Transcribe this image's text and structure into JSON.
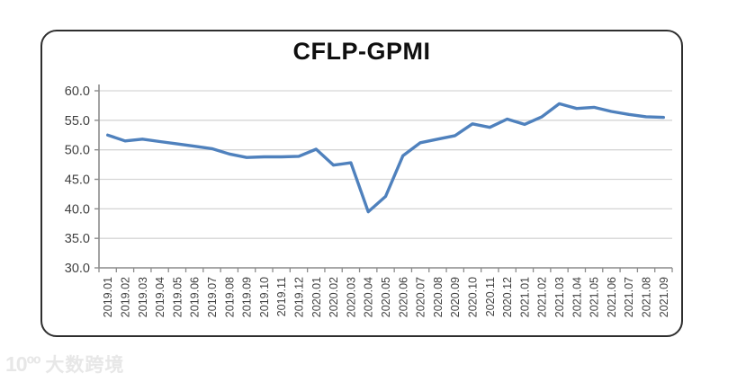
{
  "title": "CFLP-GPMI",
  "watermark": {
    "logo": "10ºº",
    "text": "大数跨境"
  },
  "colors": {
    "line": "#4F81BD",
    "gridline": "#d6d6d6",
    "axis": "#8c8c8c",
    "tick_text": "#3f3f3f",
    "frame_border": "#2e2e2e",
    "title_text": "#0f0f0f",
    "watermark_text": "#e7e7e7"
  },
  "chart_data": {
    "type": "line",
    "title": "CFLP-GPMI",
    "xlabel": "",
    "ylabel": "",
    "ylim": [
      30.0,
      60.0
    ],
    "ytick_step": 5.0,
    "ytick_labels": [
      "60.0",
      "55.0",
      "50.0",
      "45.0",
      "40.0",
      "35.0",
      "30.0"
    ],
    "grid": "horizontal",
    "legend_position": "none",
    "categories": [
      "2019.01",
      "2019.02",
      "2019.03",
      "2019.04",
      "2019.05",
      "2019.06",
      "2019.07",
      "2019.08",
      "2019.09",
      "2019.10",
      "2019.11",
      "2019.12",
      "2020.01",
      "2020.02",
      "2020.03",
      "2020.04",
      "2020.05",
      "2020.06",
      "2020.07",
      "2020.08",
      "2020.09",
      "2020.10",
      "2020.11",
      "2020.12",
      "2021.01",
      "2021.02",
      "2021.03",
      "2021.04",
      "2021.05",
      "2021.06",
      "2021.07",
      "2021.08",
      "2021.09"
    ],
    "series": [
      {
        "name": "CFLP-GPMI",
        "color": "#4F81BD",
        "values": [
          52.5,
          51.5,
          51.8,
          51.4,
          51.0,
          50.6,
          50.2,
          49.3,
          48.7,
          48.8,
          48.8,
          48.9,
          50.1,
          47.4,
          47.8,
          39.5,
          42.1,
          49.0,
          51.2,
          51.8,
          52.4,
          54.4,
          53.8,
          55.2,
          54.3,
          55.6,
          57.8,
          57.0,
          57.2,
          56.5,
          56.0,
          55.6,
          55.5
        ]
      }
    ]
  }
}
